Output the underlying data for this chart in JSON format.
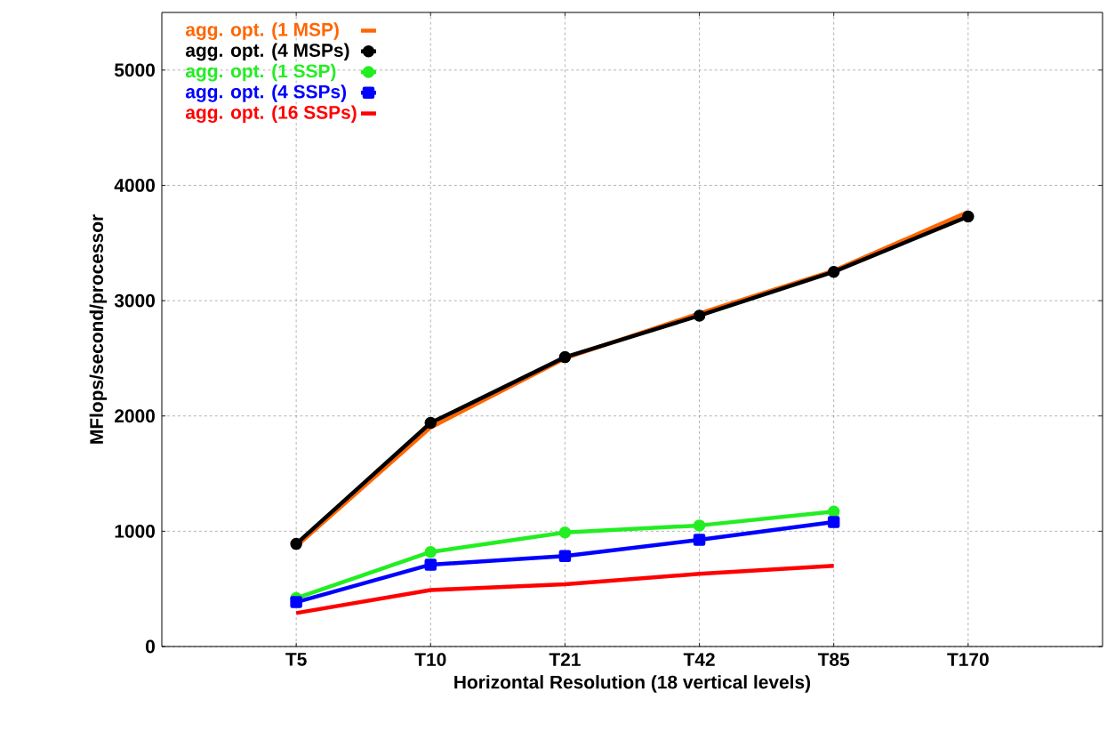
{
  "chart_data": {
    "type": "line",
    "xlabel": "Horizontal Resolution (18 vertical levels)",
    "ylabel": "MFlops/second/processor",
    "categories": [
      "T5",
      "T10",
      "T21",
      "T42",
      "T85",
      "T170"
    ],
    "ylim": [
      0,
      5500
    ],
    "yticks": [
      0,
      1000,
      2000,
      3000,
      4000,
      5000
    ],
    "grid": true,
    "legend": "top left",
    "series": [
      {
        "name": "agg. opt. (1 MSP)",
        "color": "#ff6600",
        "marker": "none",
        "values": [
          870,
          1900,
          2500,
          2890,
          3260,
          3770
        ]
      },
      {
        "name": "agg. opt. (4 MSPs)",
        "color": "#000000",
        "marker": "circle",
        "values": [
          890,
          1940,
          2510,
          2870,
          3250,
          3730
        ]
      },
      {
        "name": "agg. opt. (1 SSP)",
        "color": "#22ee22",
        "marker": "circle",
        "values": [
          420,
          820,
          990,
          1050,
          1170,
          null
        ]
      },
      {
        "name": "agg. opt. (4 SSPs)",
        "color": "#0000ff",
        "marker": "square",
        "values": [
          385,
          710,
          785,
          925,
          1080,
          null
        ]
      },
      {
        "name": "agg. opt. (16 SSPs)",
        "color": "#ff0000",
        "marker": "none",
        "values": [
          290,
          490,
          540,
          630,
          700,
          null
        ]
      }
    ]
  }
}
